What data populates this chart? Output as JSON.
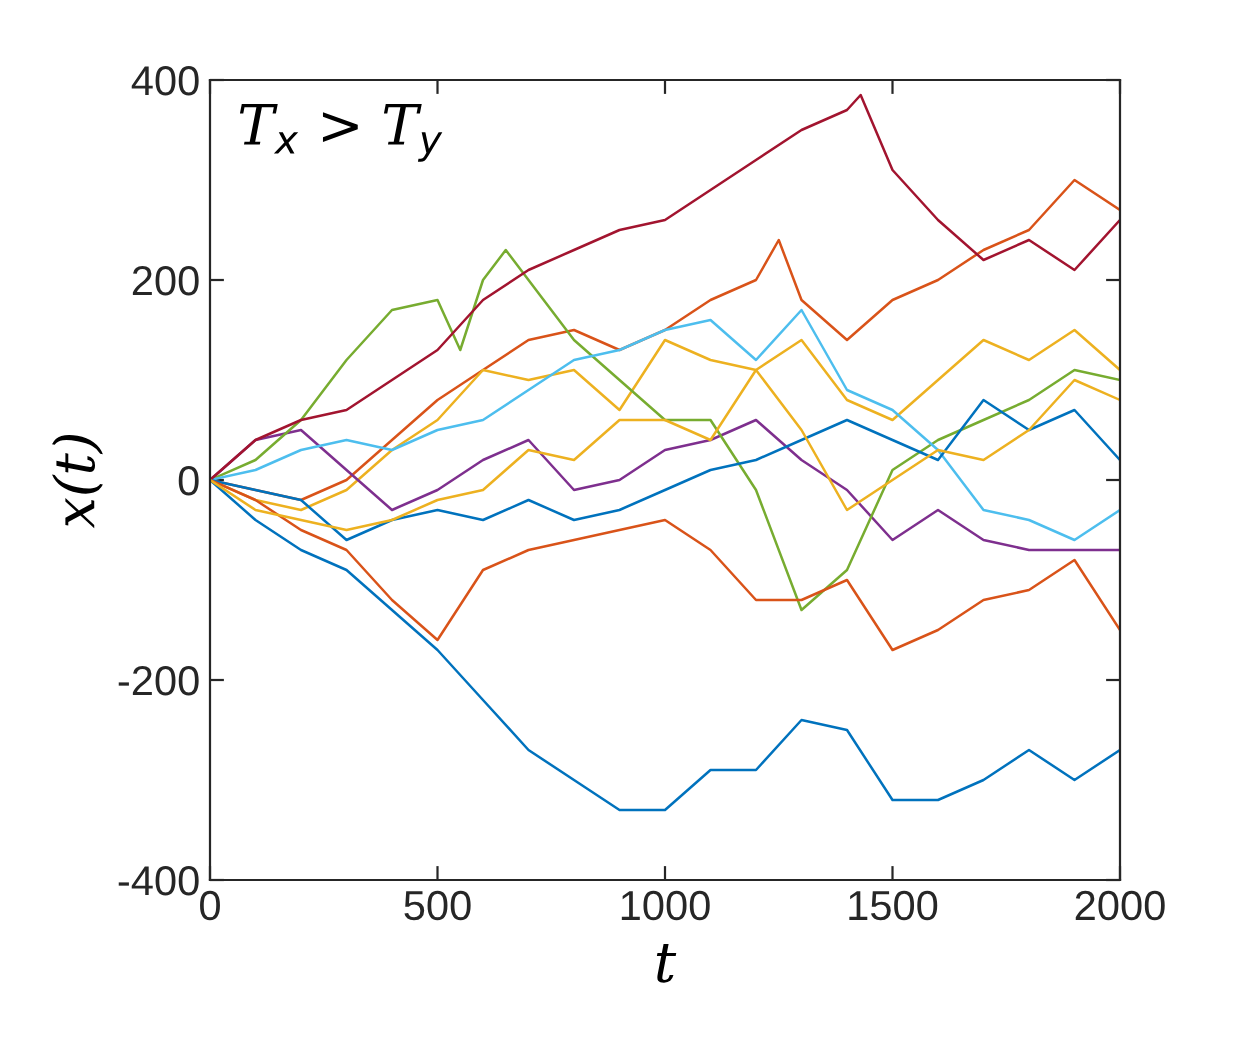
{
  "chart_data": {
    "type": "line",
    "xlabel": "t",
    "ylabel": "x(t)",
    "annotations": [
      "T$_{x}$ > T$_{y}$"
    ],
    "xlim": [
      0,
      2000
    ],
    "ylim": [
      -400,
      400
    ],
    "xticks": [
      0,
      500,
      1000,
      1500,
      2000
    ],
    "yticks": [
      -400,
      -200,
      0,
      200,
      400
    ],
    "grid": false,
    "legend": false,
    "marker": "none",
    "line_style": "solid",
    "series": [
      {
        "color": "#0072bd",
        "x": [
          0,
          100,
          200,
          300,
          400,
          500,
          600,
          700,
          800,
          900,
          1000,
          1100,
          1200,
          1300,
          1400,
          1500,
          1600,
          1700,
          1800,
          1900,
          2000
        ],
        "values": [
          0,
          -40,
          -70,
          -90,
          -130,
          -170,
          -220,
          -270,
          -300,
          -330,
          -330,
          -290,
          -290,
          -240,
          -250,
          -320,
          -320,
          -300,
          -270,
          -300,
          -270
        ]
      },
      {
        "color": "#d95319",
        "x": [
          0,
          100,
          200,
          300,
          400,
          500,
          600,
          700,
          800,
          900,
          1000,
          1100,
          1200,
          1250,
          1300,
          1400,
          1500,
          1600,
          1700,
          1800,
          1900,
          2000
        ],
        "values": [
          0,
          -10,
          -20,
          0,
          40,
          80,
          110,
          140,
          150,
          130,
          150,
          180,
          200,
          240,
          180,
          140,
          180,
          200,
          230,
          250,
          300,
          270
        ]
      },
      {
        "color": "#edb120",
        "x": [
          0,
          100,
          200,
          300,
          400,
          500,
          600,
          700,
          800,
          900,
          1000,
          1100,
          1200,
          1300,
          1400,
          1500,
          1600,
          1700,
          1800,
          1900,
          2000
        ],
        "values": [
          0,
          -20,
          -30,
          -10,
          30,
          60,
          110,
          100,
          110,
          70,
          140,
          120,
          110,
          140,
          80,
          60,
          100,
          140,
          120,
          150,
          110
        ]
      },
      {
        "color": "#7e2f8e",
        "x": [
          0,
          100,
          200,
          300,
          400,
          500,
          600,
          700,
          800,
          900,
          1000,
          1100,
          1200,
          1300,
          1400,
          1500,
          1600,
          1700,
          1800,
          1900,
          2000
        ],
        "values": [
          0,
          40,
          50,
          10,
          -30,
          -10,
          20,
          40,
          -10,
          0,
          30,
          40,
          60,
          20,
          -10,
          -60,
          -30,
          -60,
          -70,
          -70,
          -70
        ]
      },
      {
        "color": "#77ac30",
        "x": [
          0,
          100,
          200,
          300,
          400,
          500,
          550,
          600,
          650,
          700,
          800,
          900,
          1000,
          1100,
          1200,
          1300,
          1400,
          1500,
          1600,
          1700,
          1800,
          1900,
          2000
        ],
        "values": [
          0,
          20,
          60,
          120,
          170,
          180,
          130,
          200,
          230,
          200,
          140,
          100,
          60,
          60,
          -10,
          -130,
          -90,
          10,
          40,
          60,
          80,
          110,
          100
        ]
      },
      {
        "color": "#4dbeee",
        "x": [
          0,
          100,
          200,
          300,
          400,
          500,
          600,
          700,
          800,
          900,
          1000,
          1100,
          1200,
          1300,
          1400,
          1500,
          1600,
          1700,
          1800,
          1900,
          2000
        ],
        "values": [
          0,
          10,
          30,
          40,
          30,
          50,
          60,
          90,
          120,
          130,
          150,
          160,
          120,
          170,
          90,
          70,
          30,
          -30,
          -40,
          -60,
          -30
        ]
      },
      {
        "color": "#a2142f",
        "x": [
          0,
          100,
          200,
          300,
          400,
          500,
          600,
          700,
          800,
          900,
          1000,
          1100,
          1200,
          1300,
          1400,
          1430,
          1500,
          1600,
          1700,
          1800,
          1900,
          2000
        ],
        "values": [
          0,
          40,
          60,
          70,
          100,
          130,
          180,
          210,
          230,
          250,
          260,
          290,
          320,
          350,
          370,
          385,
          310,
          260,
          220,
          240,
          210,
          260
        ]
      },
      {
        "color": "#0072bd",
        "x": [
          0,
          100,
          200,
          300,
          400,
          500,
          600,
          700,
          800,
          900,
          1000,
          1100,
          1200,
          1300,
          1400,
          1500,
          1600,
          1700,
          1800,
          1900,
          2000
        ],
        "values": [
          0,
          -10,
          -20,
          -60,
          -40,
          -30,
          -40,
          -20,
          -40,
          -30,
          -10,
          10,
          20,
          40,
          60,
          40,
          20,
          80,
          50,
          70,
          20
        ]
      },
      {
        "color": "#d95319",
        "x": [
          0,
          100,
          200,
          300,
          400,
          500,
          600,
          700,
          800,
          900,
          1000,
          1100,
          1200,
          1300,
          1400,
          1500,
          1600,
          1700,
          1800,
          1900,
          2000
        ],
        "values": [
          0,
          -20,
          -50,
          -70,
          -120,
          -160,
          -90,
          -70,
          -60,
          -50,
          -40,
          -70,
          -120,
          -120,
          -100,
          -170,
          -150,
          -120,
          -110,
          -80,
          -150
        ]
      },
      {
        "color": "#edb120",
        "x": [
          0,
          100,
          200,
          300,
          400,
          500,
          600,
          700,
          800,
          900,
          1000,
          1100,
          1200,
          1300,
          1400,
          1500,
          1600,
          1700,
          1800,
          1900,
          2000
        ],
        "values": [
          0,
          -30,
          -40,
          -50,
          -40,
          -20,
          -10,
          30,
          20,
          60,
          60,
          40,
          110,
          50,
          -30,
          0,
          30,
          20,
          50,
          100,
          80
        ]
      }
    ]
  }
}
